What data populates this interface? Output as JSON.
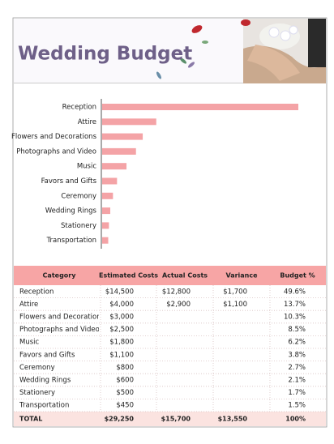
{
  "header": {
    "title": "Wedding Budget"
  },
  "chart": {
    "type": "bar",
    "orientation": "horizontal",
    "color": "#f4a3a6",
    "categories": [
      "Reception",
      "Attire",
      "Flowers and Decorations",
      "Photographs and Video",
      "Music",
      "Favors and Gifts",
      "Ceremony",
      "Wedding Rings",
      "Stationery",
      "Transportation"
    ],
    "values": [
      14500,
      4000,
      3000,
      2500,
      1800,
      1100,
      800,
      600,
      500,
      450
    ]
  },
  "table": {
    "columns": [
      "Category",
      "Estimated Costs",
      "Actual Costs",
      "Variance",
      "Budget %"
    ],
    "rows": [
      {
        "category": "Reception",
        "estimated": "$14,500",
        "actual": "$12,800",
        "variance": "$1,700",
        "budget": "49.6%"
      },
      {
        "category": "Attire",
        "estimated": "$4,000",
        "actual": "$2,900",
        "variance": "$1,100",
        "budget": "13.7%"
      },
      {
        "category": "Flowers and Decorations",
        "estimated": "$3,000",
        "budget": "10.3%"
      },
      {
        "category": "Photographs and Video",
        "estimated": "$2,500",
        "budget": "8.5%"
      },
      {
        "category": "Music",
        "estimated": "$1,800",
        "budget": "6.2%"
      },
      {
        "category": "Favors and Gifts",
        "estimated": "$1,100",
        "budget": "3.8%"
      },
      {
        "category": "Ceremony",
        "estimated": "$800",
        "budget": "2.7%"
      },
      {
        "category": "Wedding Rings",
        "estimated": "$600",
        "budget": "2.1%"
      },
      {
        "category": "Stationery",
        "estimated": "$500",
        "budget": "1.7%"
      },
      {
        "category": "Transportation",
        "estimated": "$450",
        "budget": "1.5%"
      }
    ],
    "total": {
      "category": "TOTAL",
      "estimated": "$29,250",
      "actual": "$15,700",
      "variance": "$13,550",
      "budget": "100%"
    }
  }
}
